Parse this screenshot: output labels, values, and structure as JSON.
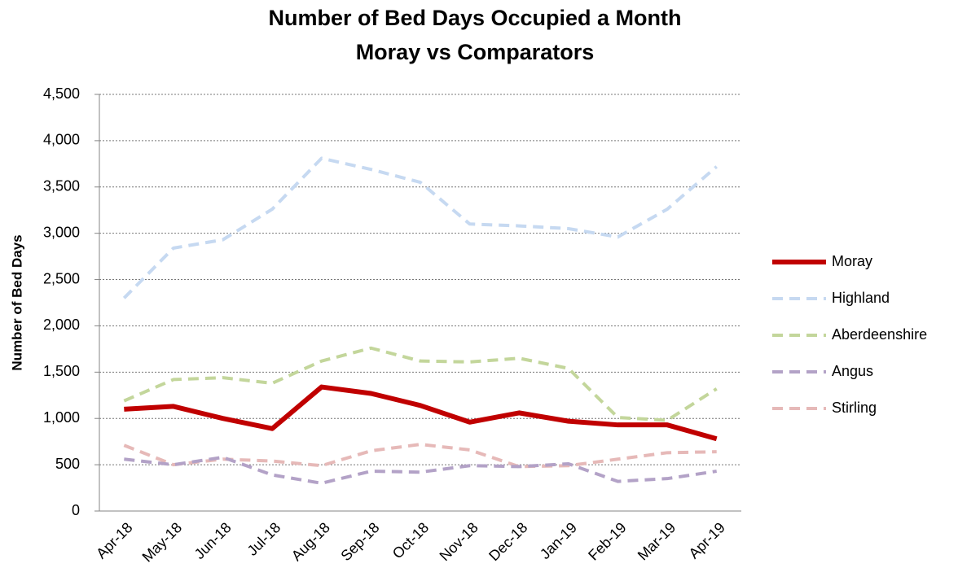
{
  "chart_data": {
    "type": "line",
    "title": "Number of Bed Days Occupied a Month",
    "subtitle": "Moray vs Comparators",
    "y_label": "Number of Bed Days",
    "categories": [
      "Apr-18",
      "May-18",
      "Jun-18",
      "Jul-18",
      "Aug-18",
      "Sep-18",
      "Oct-18",
      "Nov-18",
      "Dec-18",
      "Jan-19",
      "Feb-19",
      "Mar-19",
      "Apr-19"
    ],
    "series": [
      {
        "name": "Moray",
        "color": "#c00000",
        "values": [
          1100,
          1130,
          1000,
          890,
          1340,
          1270,
          1140,
          960,
          1060,
          970,
          930,
          930,
          780
        ]
      },
      {
        "name": "Highland",
        "color": "#c6d9f1",
        "values": [
          2300,
          2840,
          2930,
          3260,
          3810,
          3690,
          3550,
          3100,
          3080,
          3050,
          2960,
          3260,
          3720
        ]
      },
      {
        "name": "Aberdeenshire",
        "color": "#c3d69b",
        "values": [
          1190,
          1420,
          1440,
          1380,
          1620,
          1760,
          1620,
          1610,
          1650,
          1540,
          1010,
          980,
          1320
        ]
      },
      {
        "name": "Angus",
        "color": "#b3a2c7",
        "values": [
          560,
          500,
          580,
          390,
          300,
          430,
          420,
          490,
          480,
          510,
          320,
          350,
          430
        ]
      },
      {
        "name": "Stirling",
        "color": "#e6b9b8",
        "values": [
          710,
          500,
          560,
          540,
          490,
          650,
          720,
          660,
          480,
          490,
          560,
          630,
          640
        ]
      }
    ],
    "ylim": [
      0,
      4500
    ],
    "yticks": [
      0,
      500,
      {
        "value": 1000,
        "label": "1,000"
      },
      {
        "value": 1500,
        "label": "1,500"
      },
      {
        "value": 2000,
        "label": "2,000"
      },
      {
        "value": 2500,
        "label": "2,500"
      },
      {
        "value": 3000,
        "label": "3,000"
      },
      {
        "value": 3500,
        "label": "3,500"
      },
      {
        "value": 4000,
        "label": "4,000"
      },
      {
        "value": 4500,
        "label": "4,500"
      }
    ],
    "grid": true,
    "legend": "right"
  }
}
